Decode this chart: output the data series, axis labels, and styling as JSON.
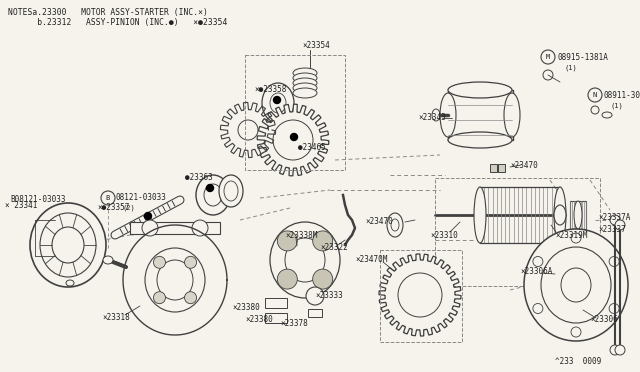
{
  "bg_color": "#ffffff",
  "line_color": "#404040",
  "dark_color": "#222222",
  "gray_color": "#888888",
  "border_color": "#cccccc",
  "title_line1": "NOTESa.23300   MOTOR ASSY-STARTER (INC.×)",
  "title_line2": "      b.23312   ASSY-PINION (INC.●)   ×●23354",
  "diagram_label": "^233  0009",
  "bg_shade": "#f5f3ec"
}
